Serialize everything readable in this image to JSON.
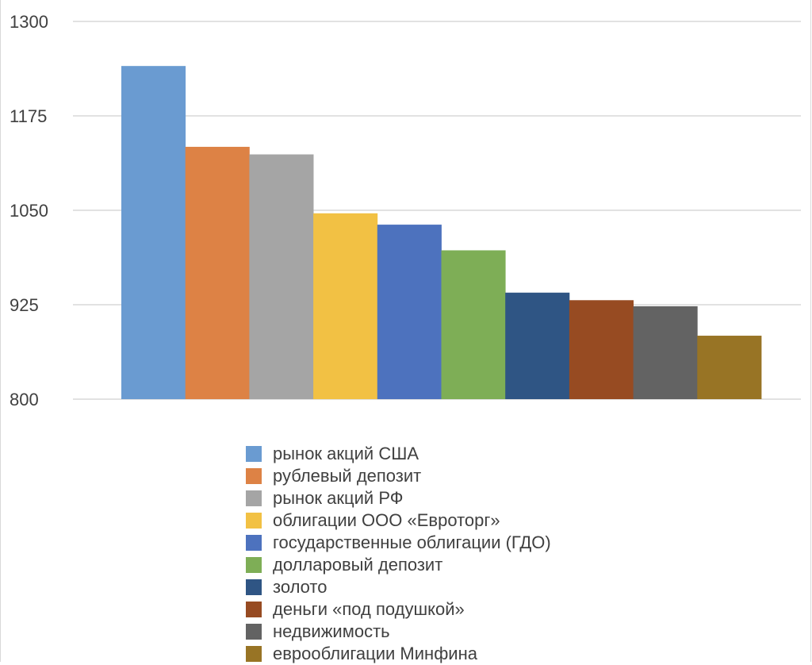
{
  "chart_data": {
    "type": "bar",
    "ylim": [
      800,
      1300
    ],
    "yticks": [
      800,
      925,
      1050,
      1175,
      1300
    ],
    "ytick_labels": [
      "800",
      "925",
      "1050",
      "1175",
      "1300"
    ],
    "grid": true,
    "legend_position": "bottom",
    "series": [
      {
        "name": "рынок акций США",
        "value": 1241,
        "color": "#6A9BD1"
      },
      {
        "name": "рублевый депозит",
        "value": 1134,
        "color": "#DD8245"
      },
      {
        "name": "рынок акций РФ",
        "value": 1124,
        "color": "#A5A5A5"
      },
      {
        "name": "облигации ООО «Евроторг»",
        "value": 1046,
        "color": "#F2C144"
      },
      {
        "name": "государственные облигации (ГДО)",
        "value": 1031,
        "color": "#4D72BE"
      },
      {
        "name": "долларовый депозит",
        "value": 997,
        "color": "#7EAE56"
      },
      {
        "name": "золото",
        "value": 941,
        "color": "#2F5584"
      },
      {
        "name": "деньги «под подушкой»",
        "value": 931,
        "color": "#974B22"
      },
      {
        "name": "недвижимость",
        "value": 923,
        "color": "#636363"
      },
      {
        "name": "еврооблигации Минфина",
        "value": 884,
        "color": "#987425"
      }
    ]
  }
}
